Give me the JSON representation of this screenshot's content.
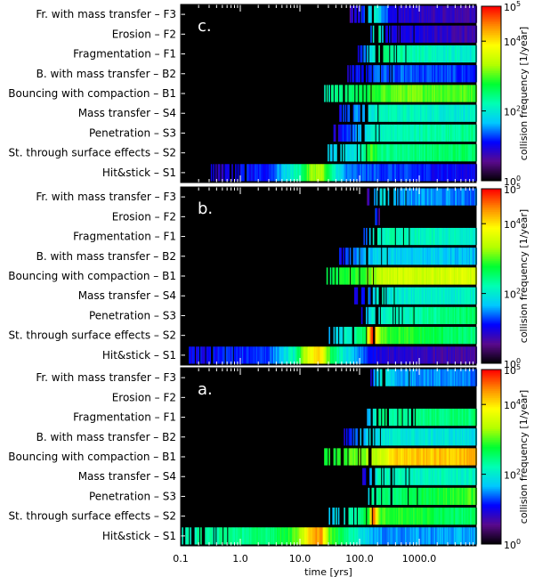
{
  "chart_data": {
    "type": "heatmap",
    "xlabel": "time [yrs]",
    "x_scale": "log",
    "x_range": [
      0.1,
      9000
    ],
    "x_ticks": [
      "0.1",
      "1.0",
      "10.0",
      "100.0",
      "1000.0"
    ],
    "x_tick_values": [
      0.1,
      1,
      10,
      100,
      1000
    ],
    "colorbar": {
      "label": "collision frequency [1/year]",
      "scale": "log",
      "range_exponent": [
        0,
        5
      ],
      "tick_exponents": [
        0,
        2,
        4,
        5
      ],
      "tick_text_base": "10",
      "colormap": [
        "#000000",
        "#5a0a8c",
        "#0000ff",
        "#00c8ff",
        "#00ffb4",
        "#00ff32",
        "#b4ff00",
        "#ffff00",
        "#ff8c00",
        "#ff0000"
      ]
    },
    "rows": [
      {
        "key": "F3",
        "label": "Fr. with mass transfer – F3"
      },
      {
        "key": "F2",
        "label": "Erosion – F2"
      },
      {
        "key": "F1",
        "label": "Fragmentation – F1"
      },
      {
        "key": "B2",
        "label": "B. with mass transfer – B2"
      },
      {
        "key": "B1",
        "label": "Bouncing with compaction – B1"
      },
      {
        "key": "S4",
        "label": "Mass transfer – S4"
      },
      {
        "key": "S3",
        "label": "Penetration – S3"
      },
      {
        "key": "S2",
        "label": "St. through surface effects – S2"
      },
      {
        "key": "S1",
        "label": "Hit&stick – S1"
      }
    ],
    "panels": [
      {
        "label": "c.",
        "rows": {
          "F3": [
            [
              65,
              0.6
            ],
            [
              120,
              1.3
            ],
            [
              170,
              2.2
            ],
            [
              250,
              1.5
            ],
            [
              400,
              0.9
            ],
            [
              9000,
              0.7
            ]
          ],
          "F2": [
            [
              130,
              0.7
            ],
            [
              160,
              1.6
            ],
            [
              180,
              3.3
            ],
            [
              220,
              2.0
            ],
            [
              280,
              1.0
            ],
            [
              9000,
              0.7
            ]
          ],
          "F1": [
            [
              90,
              1.0
            ],
            [
              150,
              1.8
            ],
            [
              200,
              2.4
            ],
            [
              9000,
              2.0
            ]
          ],
          "B2": [
            [
              55,
              0.9
            ],
            [
              110,
              1.2
            ],
            [
              200,
              1.4
            ],
            [
              9000,
              1.2
            ]
          ],
          "B1": [
            [
              25,
              2.2
            ],
            [
              100,
              2.6
            ],
            [
              200,
              2.9
            ],
            [
              400,
              3.1
            ],
            [
              9000,
              3.0
            ]
          ],
          "S4": [
            [
              40,
              1.0
            ],
            [
              100,
              1.6
            ],
            [
              200,
              2.2
            ],
            [
              9000,
              2.0
            ]
          ],
          "S3": [
            [
              35,
              0.9
            ],
            [
              80,
              1.4
            ],
            [
              160,
              2.1
            ],
            [
              9000,
              2.4
            ]
          ],
          "S2": [
            [
              25,
              1.6
            ],
            [
              100,
              2.0
            ],
            [
              150,
              3.0
            ],
            [
              250,
              2.4
            ],
            [
              9000,
              2.6
            ]
          ],
          "S1": [
            [
              0.28,
              0.9
            ],
            [
              3,
              1.2
            ],
            [
              10,
              2.4
            ],
            [
              15,
              3.2
            ],
            [
              22,
              3.4
            ],
            [
              30,
              2.5
            ],
            [
              60,
              1.4
            ],
            [
              9000,
              1.0
            ]
          ]
        }
      },
      {
        "label": "b.",
        "rows": {
          "F3": [
            [
              130,
              0.6
            ],
            [
              170,
              1.6
            ],
            [
              250,
              2.0
            ],
            [
              400,
              1.6
            ],
            [
              9000,
              1.4
            ]
          ],
          "F2": [
            [
              170,
              2.0
            ],
            [
              210,
              0.4
            ]
          ],
          "F1": [
            [
              110,
              1.2
            ],
            [
              180,
              2.2
            ],
            [
              9000,
              2.1
            ]
          ],
          "B2": [
            [
              40,
              1.0
            ],
            [
              120,
              1.6
            ],
            [
              200,
              1.8
            ],
            [
              9000,
              1.7
            ]
          ],
          "B1": [
            [
              25,
              2.6
            ],
            [
              120,
              3.0
            ],
            [
              250,
              3.5
            ],
            [
              9000,
              3.6
            ]
          ],
          "S4": [
            [
              80,
              0.8
            ],
            [
              140,
              1.4
            ],
            [
              200,
              2.0
            ],
            [
              9000,
              2.1
            ]
          ],
          "S3": [
            [
              100,
              1.0
            ],
            [
              150,
              2.0
            ],
            [
              9000,
              2.6
            ]
          ],
          "S2": [
            [
              30,
              1.6
            ],
            [
              120,
              2.6
            ],
            [
              160,
              4.8
            ],
            [
              220,
              3.0
            ],
            [
              9000,
              2.4
            ]
          ],
          "S1": [
            [
              0.12,
              1.0
            ],
            [
              3,
              1.3
            ],
            [
              8,
              2.2
            ],
            [
              14,
              3.8
            ],
            [
              22,
              4.0
            ],
            [
              35,
              2.5
            ],
            [
              80,
              1.6
            ],
            [
              200,
              0.9
            ],
            [
              9000,
              0.7
            ]
          ]
        }
      },
      {
        "label": "a.",
        "rows": {
          "F3": [
            [
              140,
              0.6
            ],
            [
              180,
              1.8
            ],
            [
              260,
              2.0
            ],
            [
              400,
              1.6
            ],
            [
              9000,
              1.4
            ]
          ],
          "F2": [
            [
              180,
              2.0
            ],
            [
              220,
              0.4
            ]
          ],
          "F1": [
            [
              130,
              1.4
            ],
            [
              200,
              2.4
            ],
            [
              9000,
              2.5
            ]
          ],
          "B2": [
            [
              50,
              1.0
            ],
            [
              130,
              1.8
            ],
            [
              250,
              2.0
            ],
            [
              9000,
              1.9
            ]
          ],
          "B1": [
            [
              25,
              2.7
            ],
            [
              120,
              3.2
            ],
            [
              250,
              3.6
            ],
            [
              400,
              4.1
            ],
            [
              9000,
              4.2
            ]
          ],
          "S4": [
            [
              110,
              0.8
            ],
            [
              150,
              1.6
            ],
            [
              200,
              2.2
            ],
            [
              9000,
              2.1
            ]
          ],
          "S3": [
            [
              120,
              1.2
            ],
            [
              160,
              2.4
            ],
            [
              9000,
              3.0
            ]
          ],
          "S2": [
            [
              30,
              1.6
            ],
            [
              140,
              2.8
            ],
            [
              160,
              4.9
            ],
            [
              220,
              3.0
            ],
            [
              9000,
              2.5
            ]
          ],
          "S1": [
            [
              0.1,
              2.2
            ],
            [
              3,
              2.5
            ],
            [
              8,
              3.0
            ],
            [
              14,
              4.0
            ],
            [
              22,
              4.5
            ],
            [
              30,
              3.0
            ],
            [
              80,
              2.2
            ],
            [
              200,
              1.5
            ],
            [
              9000,
              1.6
            ]
          ]
        }
      }
    ]
  }
}
